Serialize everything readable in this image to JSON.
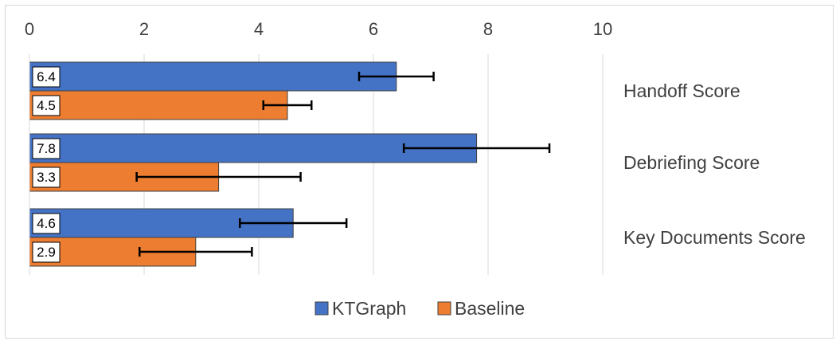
{
  "chart_data": {
    "type": "bar",
    "orientation": "horizontal",
    "categories": [
      "Handoff Score",
      "Debriefing Score",
      "Key Documents Score"
    ],
    "series": [
      {
        "name": "KTGraph",
        "values": [
          6.4,
          7.8,
          4.6
        ],
        "errors": [
          0.65,
          1.27,
          0.93
        ],
        "color": "#4472c4"
      },
      {
        "name": "Baseline",
        "values": [
          4.5,
          3.3,
          2.9
        ],
        "errors": [
          0.42,
          1.43,
          0.98
        ],
        "color": "#ed7d31"
      }
    ],
    "data_labels": true,
    "error_bars": true,
    "xlim": [
      0,
      10
    ],
    "xticks": [
      "0",
      "2",
      "4",
      "6",
      "8",
      "10"
    ],
    "x_axis_position": "top",
    "category_labels_position": "right",
    "grid": true,
    "legend": "bottom"
  }
}
